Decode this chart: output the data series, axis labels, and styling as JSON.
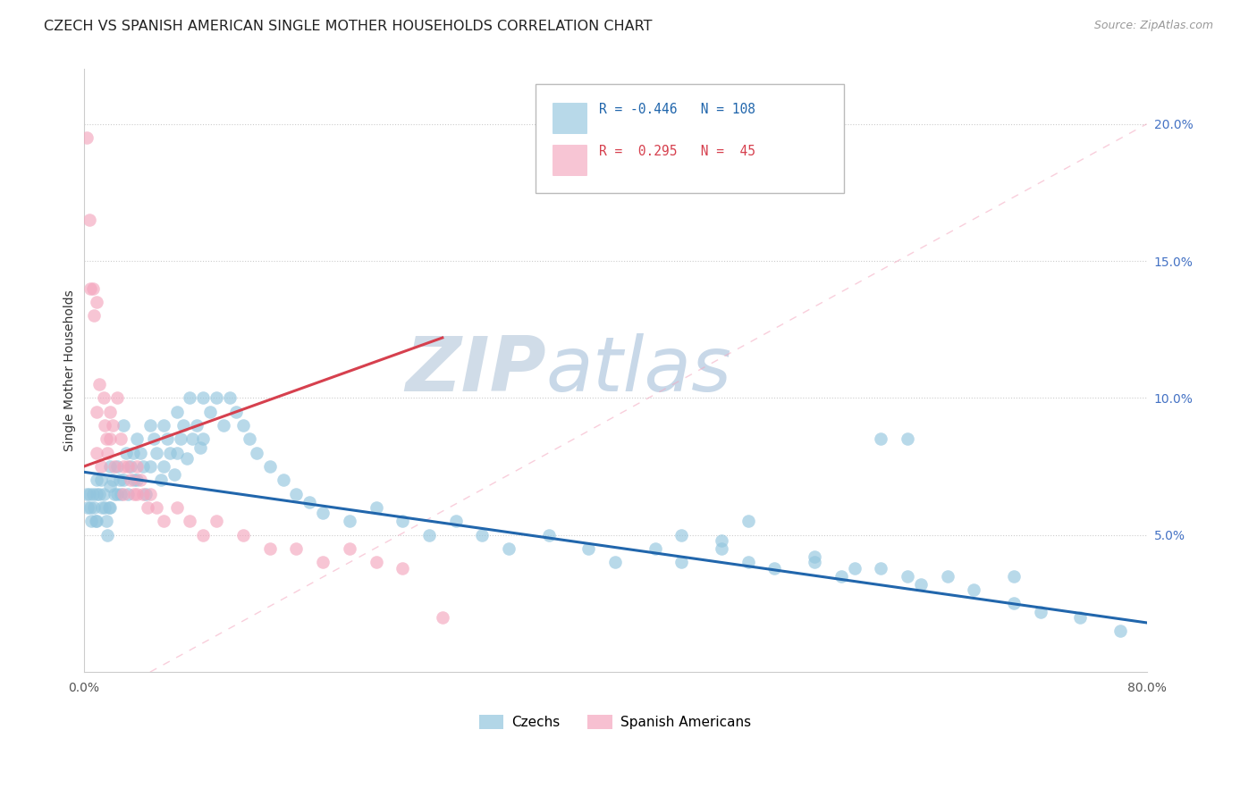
{
  "title": "CZECH VS SPANISH AMERICAN SINGLE MOTHER HOUSEHOLDS CORRELATION CHART",
  "source": "Source: ZipAtlas.com",
  "ylabel": "Single Mother Households",
  "xlim": [
    0.0,
    0.8
  ],
  "ylim": [
    0.0,
    0.22
  ],
  "xtick_positions": [
    0.0,
    0.1,
    0.2,
    0.3,
    0.4,
    0.5,
    0.6,
    0.7,
    0.8
  ],
  "xticklabels": [
    "0.0%",
    "",
    "",
    "",
    "",
    "",
    "",
    "",
    "80.0%"
  ],
  "ytick_positions": [
    0.05,
    0.1,
    0.15,
    0.2
  ],
  "yticklabels_right": [
    "5.0%",
    "10.0%",
    "15.0%",
    "20.0%"
  ],
  "legend_blue_r": "-0.446",
  "legend_blue_n": "108",
  "legend_pink_r": "0.295",
  "legend_pink_n": "45",
  "legend_label_blue": "Czechs",
  "legend_label_pink": "Spanish Americans",
  "blue_color": "#92c5de",
  "pink_color": "#f4a6be",
  "blue_line_color": "#2166ac",
  "pink_line_color": "#d6404e",
  "ref_line_color": "#f4a6be",
  "watermark_zip_color": "#d0dce8",
  "watermark_atlas_color": "#c8d8e8",
  "title_fontsize": 11.5,
  "axis_label_fontsize": 10,
  "tick_fontsize": 10,
  "right_tick_color": "#4472c4",
  "blue_scatter_x": [
    0.002,
    0.003,
    0.004,
    0.005,
    0.006,
    0.007,
    0.008,
    0.009,
    0.01,
    0.01,
    0.01,
    0.012,
    0.013,
    0.014,
    0.015,
    0.016,
    0.017,
    0.018,
    0.019,
    0.02,
    0.02,
    0.02,
    0.022,
    0.023,
    0.025,
    0.025,
    0.027,
    0.028,
    0.03,
    0.03,
    0.032,
    0.033,
    0.035,
    0.037,
    0.038,
    0.04,
    0.04,
    0.043,
    0.045,
    0.047,
    0.05,
    0.05,
    0.053,
    0.055,
    0.058,
    0.06,
    0.06,
    0.063,
    0.065,
    0.068,
    0.07,
    0.07,
    0.073,
    0.075,
    0.078,
    0.08,
    0.082,
    0.085,
    0.088,
    0.09,
    0.09,
    0.095,
    0.1,
    0.105,
    0.11,
    0.115,
    0.12,
    0.125,
    0.13,
    0.14,
    0.15,
    0.16,
    0.17,
    0.18,
    0.2,
    0.22,
    0.24,
    0.26,
    0.28,
    0.3,
    0.32,
    0.35,
    0.38,
    0.4,
    0.43,
    0.45,
    0.48,
    0.5,
    0.52,
    0.55,
    0.57,
    0.6,
    0.62,
    0.63,
    0.65,
    0.67,
    0.7,
    0.72,
    0.75,
    0.78,
    0.6,
    0.62,
    0.7,
    0.5,
    0.45,
    0.48,
    0.55,
    0.58
  ],
  "blue_scatter_y": [
    0.065,
    0.06,
    0.065,
    0.06,
    0.055,
    0.065,
    0.06,
    0.055,
    0.07,
    0.065,
    0.055,
    0.065,
    0.07,
    0.06,
    0.065,
    0.06,
    0.055,
    0.05,
    0.06,
    0.075,
    0.068,
    0.06,
    0.07,
    0.065,
    0.075,
    0.065,
    0.07,
    0.065,
    0.09,
    0.07,
    0.08,
    0.065,
    0.075,
    0.08,
    0.07,
    0.085,
    0.07,
    0.08,
    0.075,
    0.065,
    0.09,
    0.075,
    0.085,
    0.08,
    0.07,
    0.09,
    0.075,
    0.085,
    0.08,
    0.072,
    0.095,
    0.08,
    0.085,
    0.09,
    0.078,
    0.1,
    0.085,
    0.09,
    0.082,
    0.1,
    0.085,
    0.095,
    0.1,
    0.09,
    0.1,
    0.095,
    0.09,
    0.085,
    0.08,
    0.075,
    0.07,
    0.065,
    0.062,
    0.058,
    0.055,
    0.06,
    0.055,
    0.05,
    0.055,
    0.05,
    0.045,
    0.05,
    0.045,
    0.04,
    0.045,
    0.04,
    0.045,
    0.04,
    0.038,
    0.04,
    0.035,
    0.038,
    0.035,
    0.032,
    0.035,
    0.03,
    0.025,
    0.022,
    0.02,
    0.015,
    0.085,
    0.085,
    0.035,
    0.055,
    0.05,
    0.048,
    0.042,
    0.038
  ],
  "pink_scatter_x": [
    0.002,
    0.004,
    0.005,
    0.007,
    0.008,
    0.01,
    0.01,
    0.01,
    0.012,
    0.013,
    0.015,
    0.016,
    0.017,
    0.018,
    0.02,
    0.02,
    0.022,
    0.023,
    0.025,
    0.028,
    0.03,
    0.03,
    0.033,
    0.035,
    0.038,
    0.04,
    0.04,
    0.043,
    0.045,
    0.048,
    0.05,
    0.055,
    0.06,
    0.07,
    0.08,
    0.09,
    0.1,
    0.12,
    0.14,
    0.16,
    0.18,
    0.2,
    0.22,
    0.24,
    0.27
  ],
  "pink_scatter_y": [
    0.195,
    0.165,
    0.14,
    0.14,
    0.13,
    0.135,
    0.095,
    0.08,
    0.105,
    0.075,
    0.1,
    0.09,
    0.085,
    0.08,
    0.095,
    0.085,
    0.09,
    0.075,
    0.1,
    0.085,
    0.075,
    0.065,
    0.075,
    0.07,
    0.065,
    0.075,
    0.065,
    0.07,
    0.065,
    0.06,
    0.065,
    0.06,
    0.055,
    0.06,
    0.055,
    0.05,
    0.055,
    0.05,
    0.045,
    0.045,
    0.04,
    0.045,
    0.04,
    0.038,
    0.02
  ],
  "blue_trend_x": [
    0.0,
    0.8
  ],
  "blue_trend_y": [
    0.073,
    0.018
  ],
  "pink_trend_x": [
    0.0,
    0.27
  ],
  "pink_trend_y": [
    0.075,
    0.122
  ],
  "ref_line_x": [
    0.05,
    0.8
  ],
  "ref_line_y": [
    0.0,
    0.2
  ]
}
